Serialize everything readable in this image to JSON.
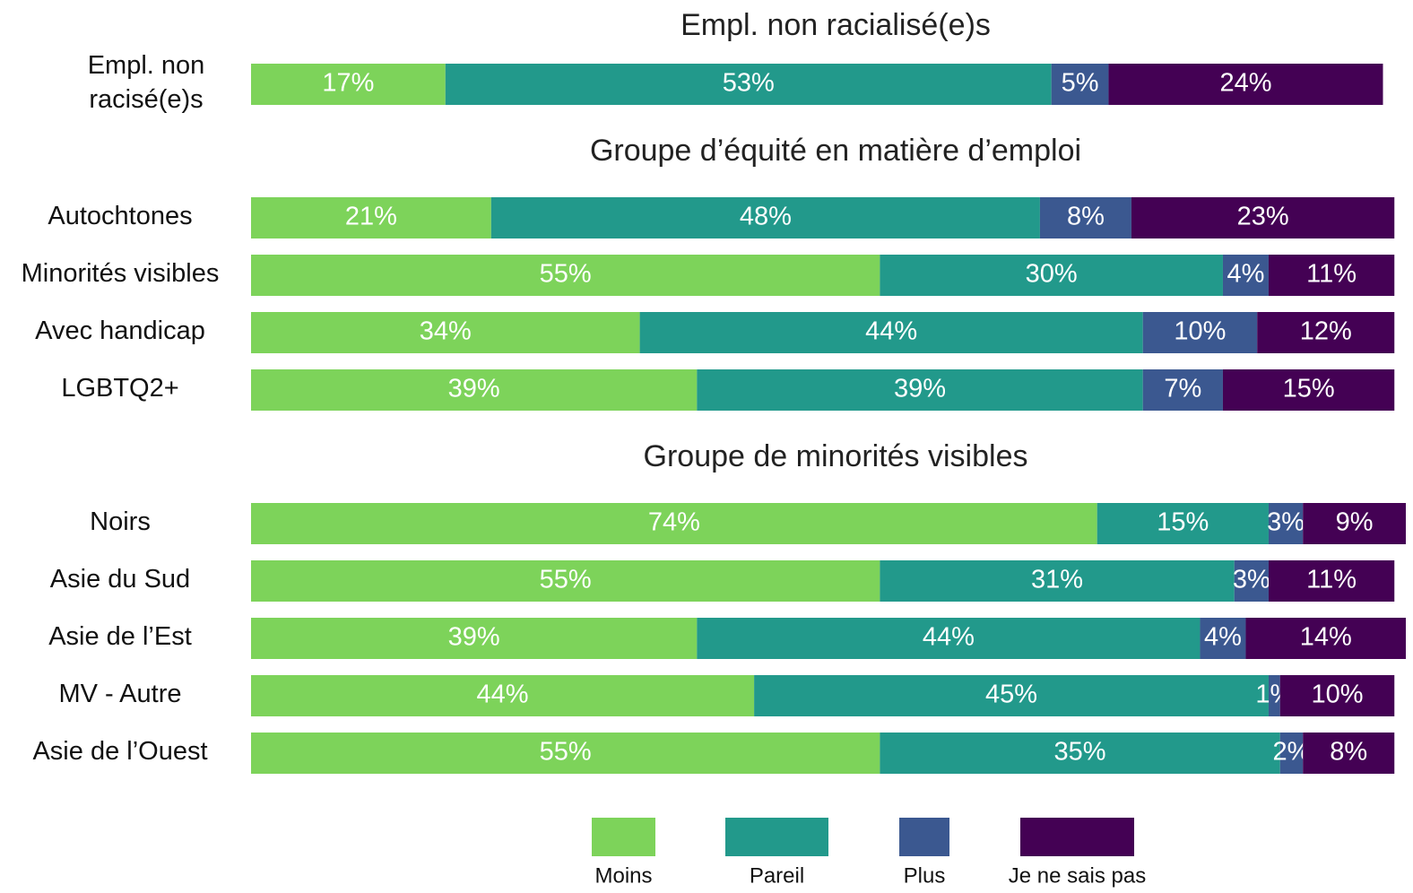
{
  "chart_data": {
    "type": "bar",
    "stacked": true,
    "orientation": "horizontal",
    "xlim": [
      0,
      101
    ],
    "sections": [
      {
        "title": "Empl. non racialisé(e)s",
        "categories": [
          "Empl. non racisé(e)s"
        ]
      },
      {
        "title": "Groupe d’équité en matière d’emploi",
        "categories": [
          "Autochtones",
          "Minorités visibles",
          "Avec handicap",
          "LGBTQ2+"
        ]
      },
      {
        "title": "Groupe de minorités visibles",
        "categories": [
          "Noirs",
          "Asie du Sud",
          "Asie de l’Est",
          "MV - Autre",
          "Asie de l’Ouest"
        ]
      }
    ],
    "series": [
      {
        "name": "Moins",
        "color": "#7dd35a",
        "values": [
          [
            17
          ],
          [
            21,
            55,
            34,
            39
          ],
          [
            74,
            55,
            39,
            44,
            55
          ]
        ],
        "value_labels": [
          [
            "17%"
          ],
          [
            "21%",
            "55%",
            "34%",
            "39%"
          ],
          [
            "74%",
            "55%",
            "39%",
            "44%",
            "55%"
          ]
        ]
      },
      {
        "name": "Pareil",
        "color": "#22998b",
        "values": [
          [
            53
          ],
          [
            48,
            30,
            44,
            39
          ],
          [
            15,
            31,
            44,
            45,
            35
          ]
        ],
        "value_labels": [
          [
            "53%"
          ],
          [
            "48%",
            "30%",
            "44%",
            "39%"
          ],
          [
            "15%",
            "31%",
            "44%",
            "45%",
            "35%"
          ]
        ]
      },
      {
        "name": "Plus",
        "color": "#3b5890",
        "values": [
          [
            5
          ],
          [
            8,
            4,
            10,
            7
          ],
          [
            3,
            3,
            4,
            1,
            2
          ]
        ],
        "value_labels": [
          [
            "5%"
          ],
          [
            "8%",
            "4%",
            "10%",
            "7%"
          ],
          [
            "3%",
            "3%",
            "4%",
            "1%",
            "2%"
          ]
        ]
      },
      {
        "name": "Je ne sais pas",
        "color": "#440154",
        "values": [
          [
            24
          ],
          [
            23,
            11,
            12,
            15
          ],
          [
            9,
            11,
            14,
            10,
            8
          ]
        ],
        "value_labels": [
          [
            "24%"
          ],
          [
            "23%",
            "11%",
            "12%",
            "15%"
          ],
          [
            "9%",
            "11%",
            "14%",
            "10%",
            "8%"
          ]
        ]
      }
    ],
    "legend": "bottom"
  }
}
